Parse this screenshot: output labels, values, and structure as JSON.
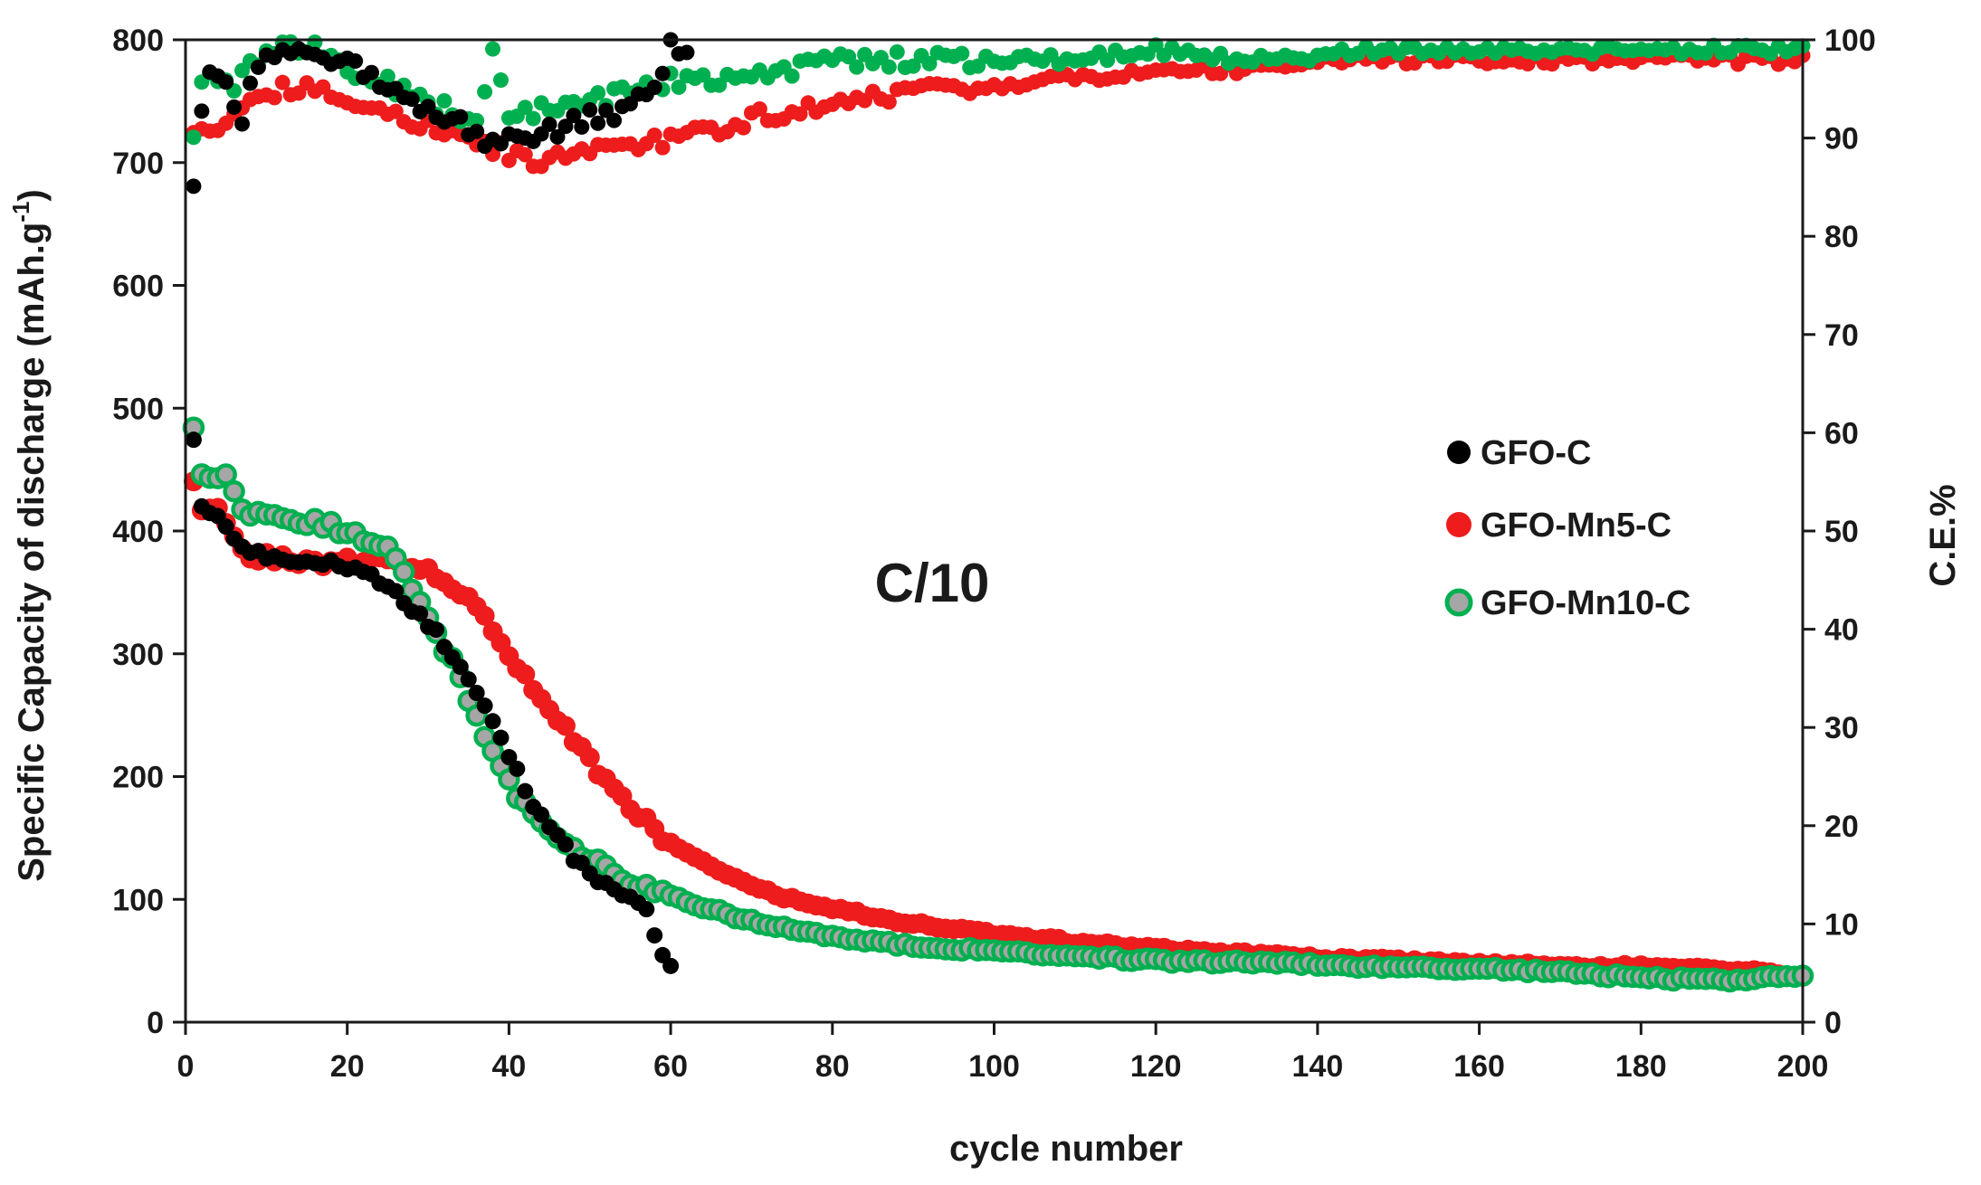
{
  "chart_data": {
    "type": "scatter",
    "title": "",
    "annotation": "C/10",
    "xlabel": "cycle number",
    "ylabel": "Specific Capacity of discharge (mAh.g",
    "ylabel_superscript": "-1",
    "ylabel_close": ")",
    "y2label": "C.E.%",
    "xlim": [
      0,
      200
    ],
    "ylim": [
      0,
      800
    ],
    "y2lim": [
      0,
      100
    ],
    "x_ticks": [
      0,
      20,
      40,
      60,
      80,
      100,
      120,
      140,
      160,
      180,
      200
    ],
    "y_ticks": [
      0,
      100,
      200,
      300,
      400,
      500,
      600,
      700,
      800
    ],
    "y2_ticks": [
      0,
      10,
      20,
      30,
      40,
      50,
      60,
      70,
      80,
      90,
      100
    ],
    "x_tick_labels": [
      "0",
      "20",
      "40",
      "60",
      "80",
      "100",
      "120",
      "140",
      "160",
      "180",
      "200"
    ],
    "y_tick_labels": [
      "0",
      "100",
      "200",
      "300",
      "400",
      "500",
      "600",
      "700",
      "800"
    ],
    "y2_tick_labels": [
      "0",
      "10",
      "20",
      "30",
      "40",
      "50",
      "60",
      "70",
      "80",
      "90",
      "100"
    ],
    "legend_position": "right",
    "series": [
      {
        "name": "GFO-C",
        "color": "#000000",
        "marker": "filled",
        "capacity_keypoints": [
          [
            1,
            475
          ],
          [
            2,
            420
          ],
          [
            4,
            410
          ],
          [
            6,
            395
          ],
          [
            8,
            385
          ],
          [
            12,
            378
          ],
          [
            18,
            372
          ],
          [
            22,
            365
          ],
          [
            25,
            355
          ],
          [
            27,
            345
          ],
          [
            30,
            325
          ],
          [
            33,
            300
          ],
          [
            35,
            280
          ],
          [
            38,
            245
          ],
          [
            40,
            215
          ],
          [
            42,
            190
          ],
          [
            44,
            165
          ],
          [
            46,
            150
          ],
          [
            48,
            135
          ],
          [
            50,
            122
          ],
          [
            52,
            112
          ],
          [
            55,
            100
          ],
          [
            57,
            88
          ],
          [
            58,
            70
          ],
          [
            59,
            55
          ],
          [
            60,
            45
          ]
        ],
        "ce_keypoints": [
          [
            1,
            85
          ],
          [
            2,
            93
          ],
          [
            3,
            96
          ],
          [
            4,
            97
          ],
          [
            6,
            94
          ],
          [
            7,
            92
          ],
          [
            9,
            98
          ],
          [
            12,
            99
          ],
          [
            15,
            98
          ],
          [
            18,
            98
          ],
          [
            21,
            97
          ],
          [
            24,
            96
          ],
          [
            27,
            94
          ],
          [
            30,
            93
          ],
          [
            33,
            92
          ],
          [
            35,
            91
          ],
          [
            37,
            90
          ],
          [
            40,
            90
          ],
          [
            43,
            90
          ],
          [
            46,
            91
          ],
          [
            50,
            92
          ],
          [
            55,
            93
          ],
          [
            58,
            95
          ],
          [
            59,
            97
          ],
          [
            60,
            100
          ],
          [
            61,
            98
          ],
          [
            62,
            99
          ]
        ]
      },
      {
        "name": "GFO-Mn5-C",
        "color": "#ee1c1c",
        "marker": "filled",
        "capacity_keypoints": [
          [
            1,
            440
          ],
          [
            2,
            418
          ],
          [
            4,
            415
          ],
          [
            6,
            395
          ],
          [
            8,
            380
          ],
          [
            14,
            375
          ],
          [
            20,
            375
          ],
          [
            26,
            375
          ],
          [
            28,
            372
          ],
          [
            32,
            362
          ],
          [
            35,
            345
          ],
          [
            38,
            318
          ],
          [
            40,
            300
          ],
          [
            42,
            282
          ],
          [
            45,
            258
          ],
          [
            48,
            230
          ],
          [
            52,
            195
          ],
          [
            56,
            170
          ],
          [
            60,
            145
          ],
          [
            65,
            128
          ],
          [
            70,
            110
          ],
          [
            75,
            100
          ],
          [
            80,
            93
          ],
          [
            90,
            80
          ],
          [
            100,
            72
          ],
          [
            110,
            65
          ],
          [
            120,
            60
          ],
          [
            130,
            56
          ],
          [
            140,
            52
          ],
          [
            150,
            50
          ],
          [
            160,
            48
          ],
          [
            170,
            46
          ],
          [
            180,
            45
          ],
          [
            190,
            43
          ],
          [
            200,
            38
          ]
        ],
        "ce_keypoints": [
          [
            1,
            90
          ],
          [
            3,
            91
          ],
          [
            5,
            92
          ],
          [
            8,
            94
          ],
          [
            12,
            95
          ],
          [
            16,
            95
          ],
          [
            20,
            94
          ],
          [
            25,
            93
          ],
          [
            30,
            91
          ],
          [
            35,
            90
          ],
          [
            38,
            89
          ],
          [
            42,
            88
          ],
          [
            46,
            88
          ],
          [
            50,
            89
          ],
          [
            55,
            89
          ],
          [
            60,
            90
          ],
          [
            65,
            91
          ],
          [
            70,
            92
          ],
          [
            75,
            93
          ],
          [
            80,
            93
          ],
          [
            85,
            94
          ],
          [
            90,
            95
          ],
          [
            95,
            95
          ],
          [
            100,
            95
          ],
          [
            105,
            96
          ],
          [
            110,
            96
          ],
          [
            115,
            96
          ],
          [
            120,
            97
          ],
          [
            130,
            97
          ],
          [
            140,
            98
          ],
          [
            150,
            98
          ],
          [
            160,
            98
          ],
          [
            170,
            98
          ],
          [
            180,
            98
          ],
          [
            190,
            98
          ],
          [
            200,
            98
          ]
        ]
      },
      {
        "name": "GFO-Mn10-C",
        "color": "#00b050",
        "marker": "ring",
        "capacity_keypoints": [
          [
            1,
            488
          ],
          [
            2,
            445
          ],
          [
            4,
            440
          ],
          [
            5,
            443
          ],
          [
            7,
            415
          ],
          [
            10,
            412
          ],
          [
            14,
            408
          ],
          [
            18,
            404
          ],
          [
            22,
            395
          ],
          [
            25,
            385
          ],
          [
            27,
            365
          ],
          [
            29,
            340
          ],
          [
            31,
            315
          ],
          [
            33,
            295
          ],
          [
            35,
            265
          ],
          [
            37,
            235
          ],
          [
            39,
            210
          ],
          [
            41,
            182
          ],
          [
            43,
            170
          ],
          [
            45,
            160
          ],
          [
            47,
            148
          ],
          [
            49,
            137
          ],
          [
            52,
            125
          ],
          [
            55,
            112
          ],
          [
            58,
            108
          ],
          [
            60,
            102
          ],
          [
            65,
            92
          ],
          [
            70,
            82
          ],
          [
            75,
            76
          ],
          [
            80,
            70
          ],
          [
            90,
            62
          ],
          [
            100,
            58
          ],
          [
            110,
            54
          ],
          [
            120,
            50
          ],
          [
            130,
            49
          ],
          [
            140,
            47
          ],
          [
            150,
            44
          ],
          [
            160,
            43
          ],
          [
            170,
            41
          ],
          [
            180,
            36
          ],
          [
            190,
            34
          ],
          [
            200,
            38
          ]
        ],
        "ce_keypoints": [
          [
            1,
            90
          ],
          [
            2,
            96
          ],
          [
            4,
            96
          ],
          [
            6,
            95
          ],
          [
            8,
            98
          ],
          [
            12,
            99
          ],
          [
            16,
            99
          ],
          [
            20,
            97
          ],
          [
            24,
            96
          ],
          [
            28,
            94
          ],
          [
            32,
            93
          ],
          [
            36,
            92
          ],
          [
            38,
            99
          ],
          [
            40,
            92
          ],
          [
            44,
            93
          ],
          [
            48,
            93
          ],
          [
            52,
            94
          ],
          [
            56,
            95
          ],
          [
            60,
            96
          ],
          [
            65,
            96
          ],
          [
            70,
            97
          ],
          [
            75,
            97
          ],
          [
            80,
            98
          ],
          [
            90,
            98
          ],
          [
            100,
            98
          ],
          [
            110,
            98
          ],
          [
            120,
            99
          ],
          [
            130,
            98
          ],
          [
            140,
            98
          ],
          [
            145,
            99
          ],
          [
            150,
            99
          ],
          [
            160,
            99
          ],
          [
            170,
            99
          ],
          [
            180,
            99
          ],
          [
            190,
            99
          ],
          [
            200,
            99
          ]
        ]
      }
    ]
  }
}
